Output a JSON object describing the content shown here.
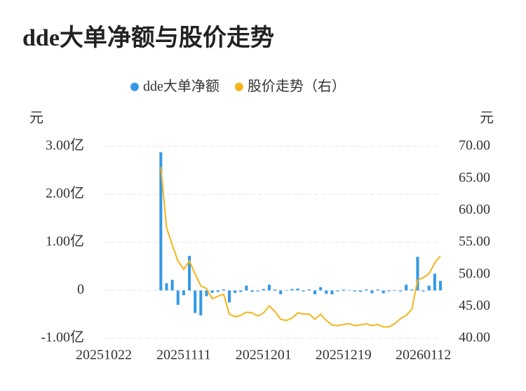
{
  "chart_data": {
    "type": "bar-line",
    "title": "dde大单净额与股价走势",
    "y_axis_label": "元",
    "y2_axis_label": "元",
    "categories": [
      "20251022",
      null,
      null,
      null,
      null,
      null,
      null,
      null,
      null,
      null,
      null,
      null,
      null,
      null,
      "20251111",
      null,
      null,
      null,
      null,
      null,
      null,
      null,
      null,
      null,
      null,
      null,
      null,
      null,
      "20251201",
      null,
      null,
      null,
      null,
      null,
      null,
      null,
      null,
      null,
      null,
      null,
      null,
      null,
      "20251219",
      null,
      null,
      null,
      null,
      null,
      null,
      null,
      null,
      null,
      null,
      null,
      null,
      null,
      "20260112",
      null,
      null,
      null
    ],
    "ylim": [
      -1,
      3
    ],
    "yticks": [
      {
        "value": -1,
        "label": "-1.00亿"
      },
      0,
      {
        "value": 1,
        "label": "1.00亿"
      },
      {
        "value": 2,
        "label": "2.00亿"
      },
      {
        "value": 3,
        "label": "3.00亿"
      }
    ],
    "y2lim": [
      40,
      70
    ],
    "y2ticks": [
      {
        "value": 40,
        "label": "40.00"
      },
      {
        "value": 45,
        "label": "45.00"
      },
      {
        "value": 50,
        "label": "50.00"
      },
      {
        "value": 55,
        "label": "55.00"
      },
      {
        "value": 60,
        "label": "60.00"
      },
      {
        "value": 65,
        "label": "65.00"
      },
      {
        "value": 70,
        "label": "70.00"
      }
    ],
    "grid": true,
    "series": [
      {
        "name": "dde大单净额",
        "type": "bar",
        "color": "#3399e6",
        "values": [
          null,
          null,
          null,
          null,
          null,
          null,
          null,
          null,
          null,
          null,
          2.88,
          0.15,
          0.22,
          -0.3,
          -0.1,
          0.72,
          -0.47,
          -0.52,
          -0.12,
          -0.05,
          -0.03,
          0.02,
          -0.25,
          -0.05,
          -0.03,
          0.1,
          -0.03,
          -0.02,
          0.03,
          0.12,
          0.02,
          -0.08,
          0.01,
          0.03,
          0.04,
          -0.02,
          0.02,
          -0.08,
          0.07,
          -0.07,
          -0.08,
          -0.02,
          0.02,
          0.01,
          -0.02,
          -0.03,
          0.02,
          -0.06,
          0.02,
          -0.06,
          -0.02,
          0.01,
          -0.02,
          0.12,
          0.02,
          0.7,
          -0.02,
          0.1,
          0.35,
          0.2
        ]
      },
      {
        "name": "股价走势（右）",
        "type": "line",
        "axis": "y2",
        "color": "#f4b41a",
        "values": [
          null,
          null,
          null,
          null,
          null,
          null,
          null,
          null,
          null,
          null,
          66.8,
          57.3,
          54.6,
          52.1,
          50.8,
          52.1,
          50.1,
          48.2,
          47.8,
          46.2,
          46.6,
          46.9,
          43.8,
          43.4,
          43.6,
          44.1,
          44.0,
          43.5,
          44.0,
          45.1,
          44.2,
          43.0,
          42.8,
          43.2,
          44.0,
          43.8,
          43.8,
          43.0,
          43.8,
          42.8,
          42.1,
          42.0,
          42.2,
          42.3,
          42.0,
          42.1,
          42.3,
          42.0,
          42.2,
          41.8,
          41.8,
          42.3,
          43.1,
          43.6,
          44.6,
          49.1,
          49.5,
          50.1,
          51.8,
          52.9
        ]
      }
    ]
  }
}
